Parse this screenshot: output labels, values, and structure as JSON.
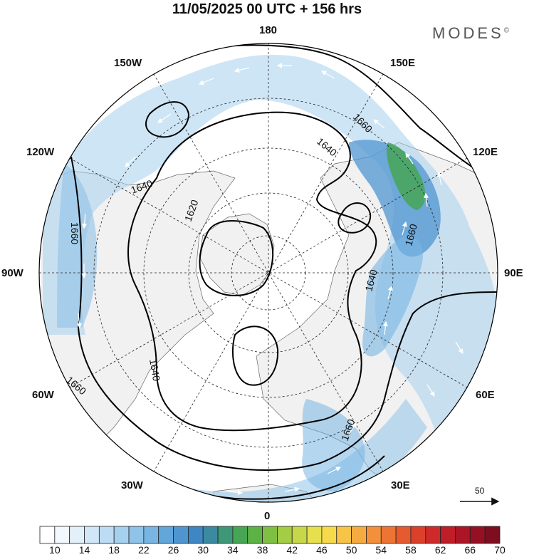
{
  "header": {
    "title": "11/05/2025  00 UTC  + 156 hrs",
    "brand": "MODES",
    "brand_mark": "©"
  },
  "map": {
    "projection": "north-polar-stereographic",
    "land_color": "#f2f2f2",
    "ocean_color": "#ffffff",
    "meridian_labels": {
      "lon_180": "180",
      "lon_150E": "150E",
      "lon_120E": "120E",
      "lon_90E": "90E",
      "lon_60E": "60E",
      "lon_30E": "30E",
      "lon_0": "0",
      "lon_30W": "30W",
      "lon_60W": "60W",
      "lon_90W": "90W",
      "lon_120W": "120W",
      "lon_150W": "150W"
    },
    "contour_labels": [
      "1620",
      "1640",
      "1640",
      "1640",
      "1640",
      "1660",
      "1660",
      "1660",
      "1660",
      "1660"
    ],
    "reference_vector": {
      "value": "50"
    }
  },
  "colorbar": {
    "colors": [
      "#ffffff",
      "#f2f8fd",
      "#e3f0fa",
      "#d1e7f7",
      "#bcdcf3",
      "#a5d0ee",
      "#8fc3e8",
      "#78b5e2",
      "#62a6da",
      "#4f96d1",
      "#3f86c4",
      "#3c8aa0",
      "#3e9878",
      "#47a656",
      "#5cb345",
      "#7fc043",
      "#a4cc45",
      "#c7d74a",
      "#e6e04f",
      "#f7d94c",
      "#f8c447",
      "#f6ab40",
      "#f3903a",
      "#ee7434",
      "#e65a2f",
      "#dc402b",
      "#cf2a29",
      "#bf1d28",
      "#ab1526",
      "#951023",
      "#7d0d1f"
    ],
    "tick_labels": [
      "10",
      "14",
      "18",
      "22",
      "26",
      "30",
      "34",
      "38",
      "42",
      "46",
      "50",
      "54",
      "58",
      "62",
      "66",
      "70"
    ]
  }
}
